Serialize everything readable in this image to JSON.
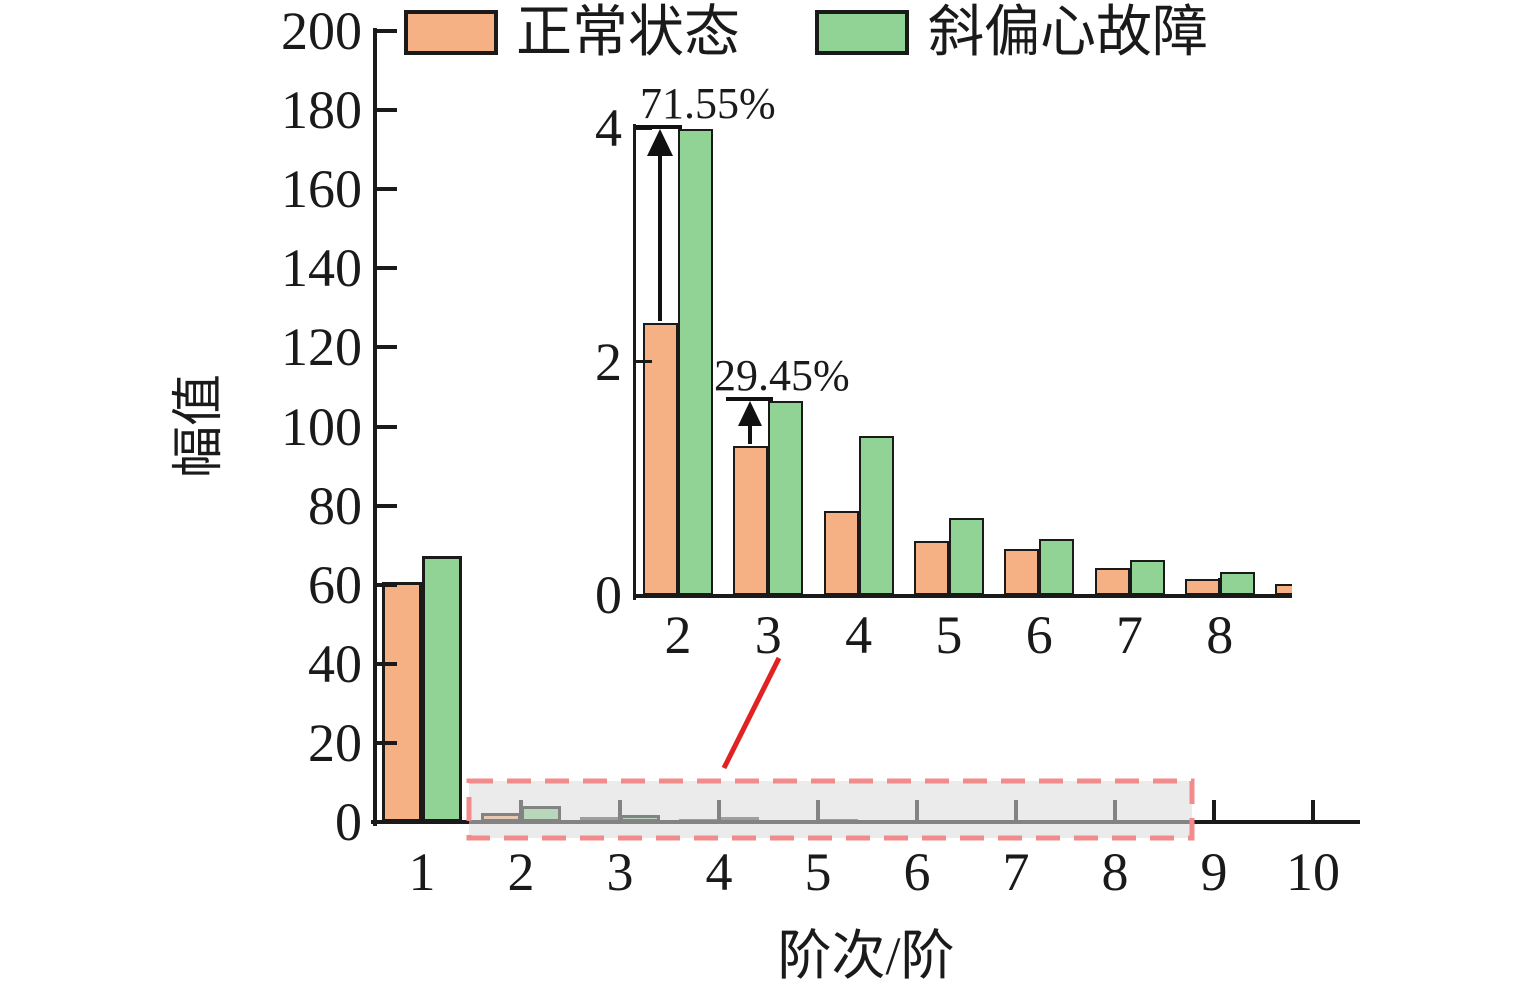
{
  "figure": {
    "description": "Grouped bar chart comparing amplitude by order, with zoomed inset of orders 2-8",
    "background": "#ffffff",
    "highlight_box_color": "#F28B8B",
    "callout_line_color": "#E02222"
  },
  "legend": {
    "items": [
      {
        "label": "正常状态",
        "color": "#F5B183"
      },
      {
        "label": "斜偏心故障",
        "color": "#90D394"
      }
    ]
  },
  "axes": {
    "y_label": "幅值",
    "x_label": "阶次/阶",
    "y_ticks": [
      "0",
      "20",
      "40",
      "60",
      "80",
      "100",
      "120",
      "140",
      "160",
      "180",
      "200"
    ],
    "x_ticks": [
      "1",
      "2",
      "3",
      "4",
      "5",
      "6",
      "7",
      "8",
      "9",
      "10"
    ]
  },
  "inset_axes": {
    "y_ticks": [
      "0",
      "2",
      "4"
    ],
    "x_ticks": [
      "2",
      "3",
      "4",
      "5",
      "6",
      "7",
      "8"
    ]
  },
  "annotations": [
    {
      "text": "71.55%",
      "at_order": 2
    },
    {
      "text": "29.45%",
      "at_order": 3
    }
  ],
  "chart_data": [
    {
      "type": "bar",
      "role": "main",
      "title": "",
      "xlabel": "阶次/阶",
      "ylabel": "幅值",
      "ylim": [
        0,
        200
      ],
      "grid": false,
      "legend_position": "top",
      "categories": [
        "1",
        "2",
        "3",
        "4",
        "5",
        "6",
        "7",
        "8",
        "9",
        "10"
      ],
      "series": [
        {
          "name": "正常状态",
          "color": "#F5B183",
          "values": [
            60.7,
            2.33,
            1.28,
            0.72,
            0.46,
            0.39,
            0.23,
            0.14,
            0.09,
            0
          ]
        },
        {
          "name": "斜偏心故障",
          "color": "#90D394",
          "values": [
            67.3,
            3.99,
            1.66,
            1.36,
            0.66,
            0.48,
            0.3,
            0.2,
            0,
            0
          ]
        }
      ]
    },
    {
      "type": "bar",
      "role": "inset-zoom-of-orders-2-8",
      "ylim": [
        0,
        4
      ],
      "grid": false,
      "categories": [
        "2",
        "3",
        "4",
        "5",
        "6",
        "7",
        "8",
        "9"
      ],
      "series": [
        {
          "name": "正常状态",
          "color": "#F5B183",
          "values": [
            2.33,
            1.28,
            0.72,
            0.46,
            0.39,
            0.23,
            0.14,
            0.09
          ]
        },
        {
          "name": "斜偏心故障",
          "color": "#90D394",
          "values": [
            3.99,
            1.66,
            1.36,
            0.66,
            0.48,
            0.3,
            0.2,
            0
          ]
        }
      ],
      "annotations": [
        {
          "order": 2,
          "text": "71.55%"
        },
        {
          "order": 3,
          "text": "29.45%"
        }
      ]
    }
  ]
}
